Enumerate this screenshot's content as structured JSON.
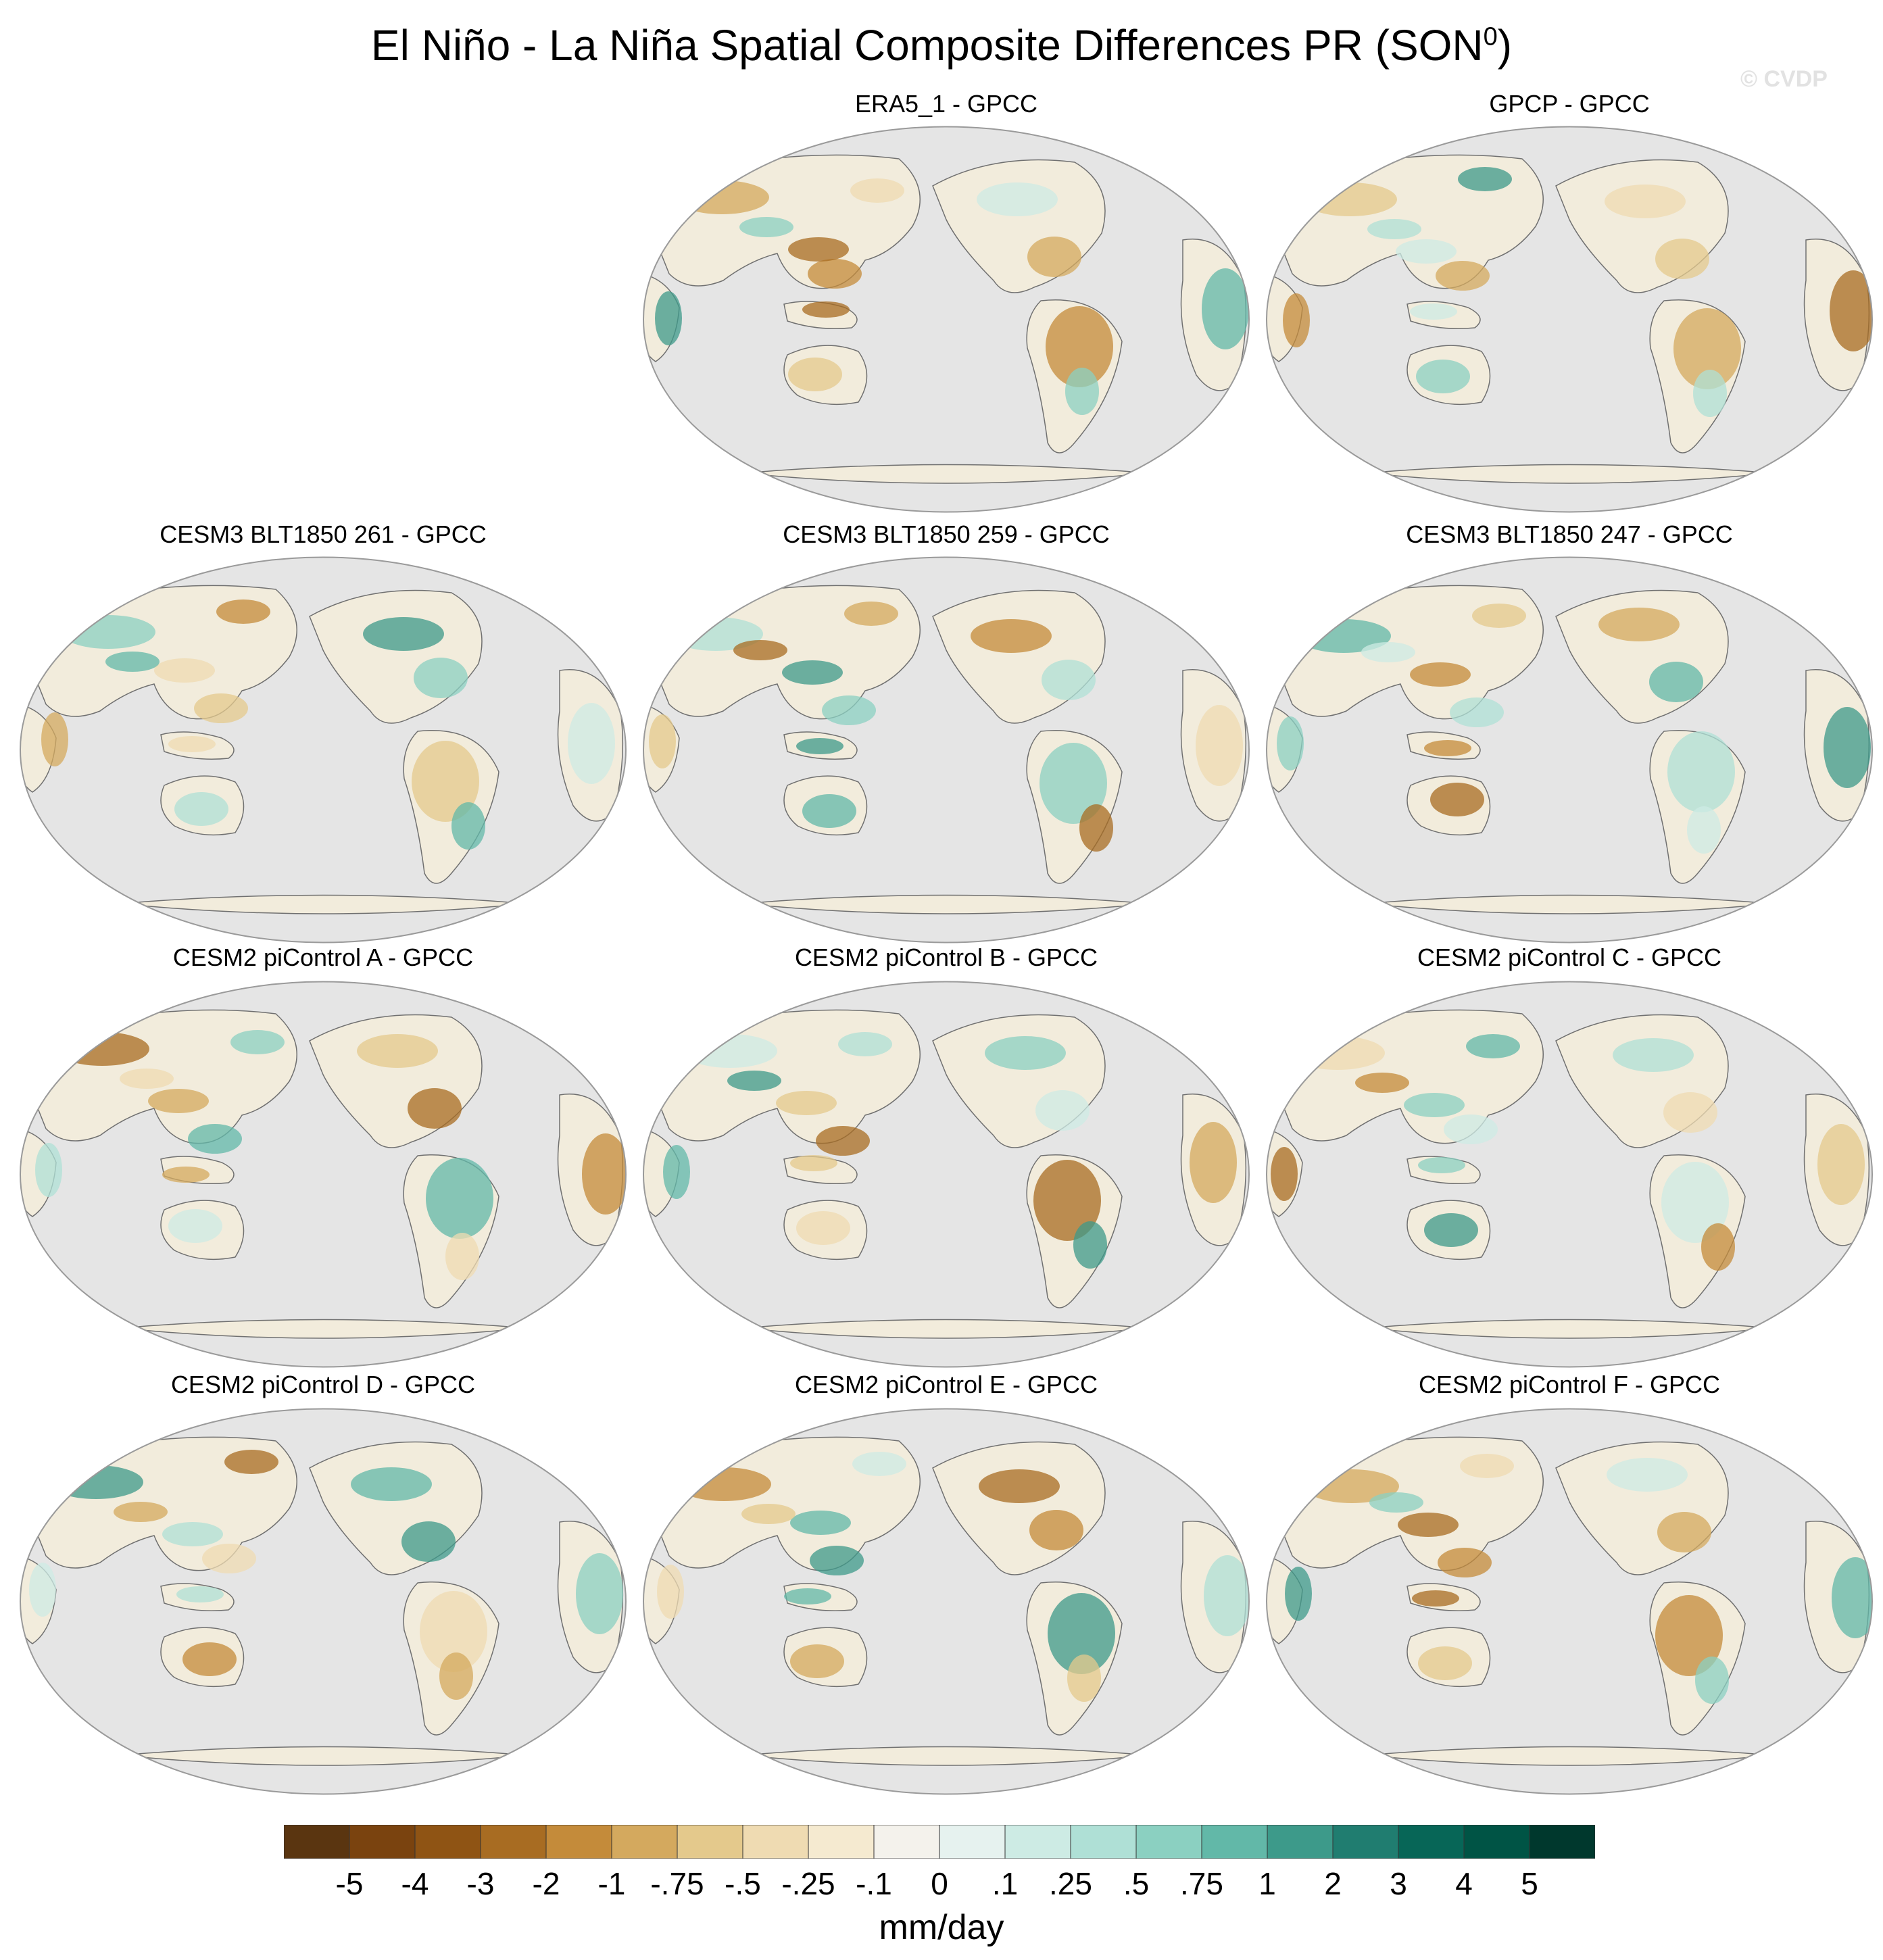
{
  "figure": {
    "title_main": "El Niño - La Niña Spatial Composite Differences PR (SON",
    "title_sup": "0",
    "title_end": ")",
    "watermark": "© CVDP",
    "panels": [
      {
        "title": "ERA5_1 - GPCC"
      },
      {
        "title": "GPCP - GPCC"
      },
      {
        "title": "CESM3 BLT1850 261 - GPCC"
      },
      {
        "title": "CESM3 BLT1850 259 - GPCC"
      },
      {
        "title": "CESM3 BLT1850 247 - GPCC"
      },
      {
        "title": "CESM2 piControl A - GPCC"
      },
      {
        "title": "CESM2 piControl B - GPCC"
      },
      {
        "title": "CESM2 piControl C - GPCC"
      },
      {
        "title": "CESM2 piControl D - GPCC"
      },
      {
        "title": "CESM2 piControl E - GPCC"
      },
      {
        "title": "CESM2 piControl F - GPCC"
      }
    ],
    "colorbar": {
      "labels": [
        "-5",
        "-4",
        "-3",
        "-2",
        "-1",
        "-.75",
        "-.5",
        "-.25",
        "-.1",
        "0",
        ".1",
        ".25",
        ".5",
        ".75",
        "1",
        "2",
        "3",
        "4",
        "5"
      ],
      "colors": [
        "#5a3510",
        "#7a430f",
        "#8f5414",
        "#a86c22",
        "#c48b3a",
        "#d4a95e",
        "#e4c98c",
        "#efdbb2",
        "#f5ead0",
        "#f4f2ec",
        "#e6f2ef",
        "#cdebe4",
        "#afe0d6",
        "#8bd0c1",
        "#62b8a8",
        "#3d9a8a",
        "#207d70",
        "#076657",
        "#005445",
        "#00382d"
      ],
      "units": "mm/day"
    },
    "ocean_color": "#e5e5e5"
  }
}
